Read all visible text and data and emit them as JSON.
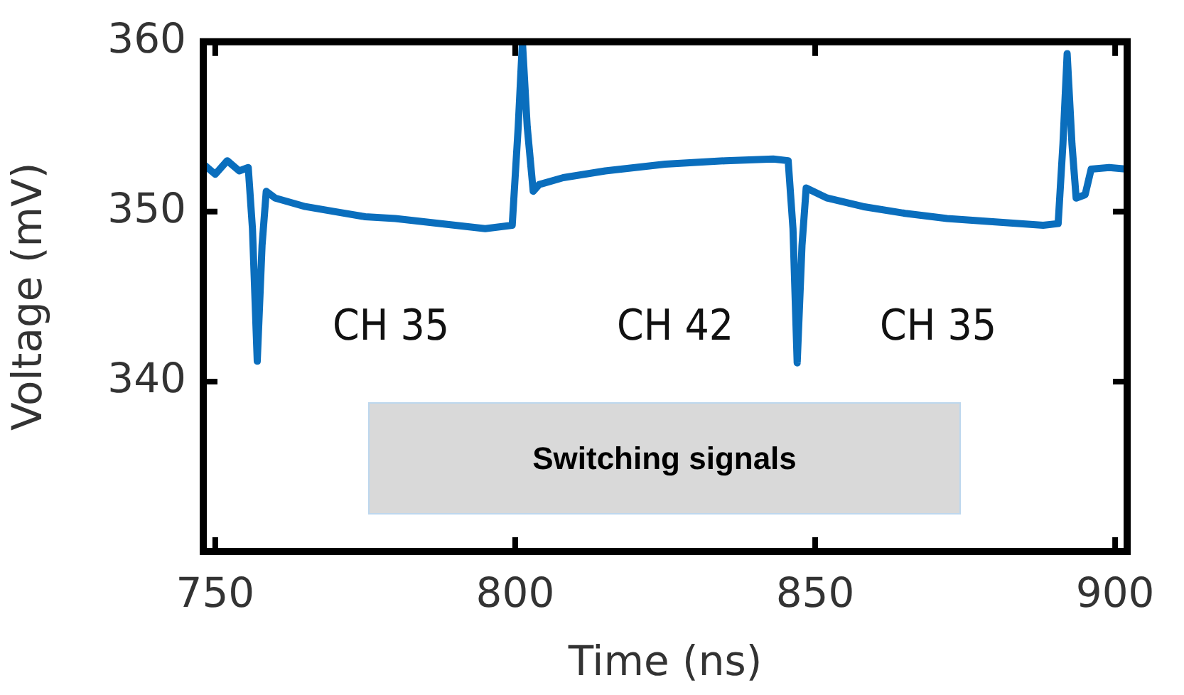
{
  "chart_data": {
    "type": "line",
    "xlabel": "Time (ns)",
    "ylabel": "Voltage (mV)",
    "xlim": [
      748,
      902
    ],
    "xticks": [
      750,
      800,
      850,
      900
    ],
    "ylim": [
      330,
      360
    ],
    "yticks": [
      340,
      350,
      360
    ],
    "grid": false,
    "legend": false,
    "marker": "none",
    "line_style": "solid",
    "series": [
      {
        "color": "#0a6ebd",
        "x": [
          748,
          750,
          752,
          754,
          755.5,
          756.2,
          757,
          757.8,
          758.5,
          760,
          765,
          770,
          775,
          780,
          785,
          790,
          795,
          799.5,
          800.5,
          801.2,
          802,
          803,
          804,
          808,
          815,
          825,
          835,
          843,
          845.5,
          846.3,
          847,
          847.8,
          848.5,
          852,
          858,
          865,
          872,
          880,
          888,
          890.5,
          891.3,
          892,
          892.8,
          893.5,
          895,
          896,
          899,
          902
        ],
        "values": [
          352.8,
          352.2,
          353,
          352.4,
          352.6,
          349,
          341.2,
          348,
          351.2,
          350.8,
          350.3,
          350,
          349.7,
          349.6,
          349.4,
          349.2,
          349,
          349.2,
          355,
          360,
          355,
          351.2,
          351.6,
          352,
          352.4,
          352.8,
          353,
          353.1,
          353,
          349,
          341.1,
          348,
          351.4,
          350.8,
          350.3,
          349.9,
          349.6,
          349.4,
          349.2,
          349.3,
          354,
          359.3,
          354,
          350.8,
          351,
          352.5,
          352.6,
          352.5
        ]
      }
    ],
    "annotations": [
      "CH 35",
      "CH 42",
      "CH 35",
      "Switching signals"
    ]
  }
}
